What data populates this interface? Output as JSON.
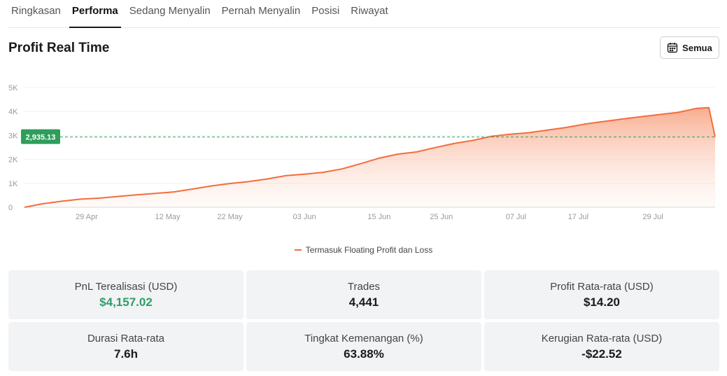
{
  "tabs": [
    {
      "label": "Ringkasan",
      "active": false
    },
    {
      "label": "Performa",
      "active": true
    },
    {
      "label": "Sedang Menyalin",
      "active": false
    },
    {
      "label": "Pernah Menyalin",
      "active": false
    },
    {
      "label": "Posisi",
      "active": false
    },
    {
      "label": "Riwayat",
      "active": false
    }
  ],
  "page_title": "Profit Real Time",
  "filter_button": {
    "label": "Semua",
    "icon": "calendar-icon"
  },
  "colors": {
    "line": "#f26d3d",
    "area_top": "#f9a98a",
    "marker": "#2e9e5b",
    "positive": "#2e9e6a"
  },
  "chart_data": {
    "type": "area",
    "title": "",
    "xlabel": "",
    "ylabel": "",
    "ylim": [
      0,
      5000
    ],
    "y_ticks": [
      0,
      1000,
      2000,
      3000,
      4000,
      5000
    ],
    "y_tick_labels": [
      "0",
      "1K",
      "2K",
      "3K",
      "4K",
      "5K"
    ],
    "x_range": [
      "2024-04-19",
      "2024-08-08"
    ],
    "x_ticks": [
      "2024-04-29",
      "2024-05-12",
      "2024-05-22",
      "2024-06-03",
      "2024-06-15",
      "2024-06-25",
      "2024-07-07",
      "2024-07-17",
      "2024-07-29"
    ],
    "x_tick_labels": [
      "29 Apr",
      "12 May",
      "22 May",
      "03 Jun",
      "15 Jun",
      "25 Jun",
      "07 Jul",
      "17 Jul",
      "29 Jul"
    ],
    "grid": true,
    "legend": "bottom-center",
    "current_marker": {
      "value": 2935.13,
      "label": "2,935.13"
    },
    "series": [
      {
        "name": "Termasuk Floating Profit dan Loss",
        "points": [
          [
            "2024-04-19",
            0
          ],
          [
            "2024-04-22",
            150
          ],
          [
            "2024-04-25",
            250
          ],
          [
            "2024-04-28",
            340
          ],
          [
            "2024-05-01",
            380
          ],
          [
            "2024-05-04",
            450
          ],
          [
            "2024-05-07",
            520
          ],
          [
            "2024-05-10",
            580
          ],
          [
            "2024-05-13",
            640
          ],
          [
            "2024-05-16",
            760
          ],
          [
            "2024-05-19",
            890
          ],
          [
            "2024-05-22",
            990
          ],
          [
            "2024-05-25",
            1070
          ],
          [
            "2024-05-28",
            1180
          ],
          [
            "2024-05-31",
            1320
          ],
          [
            "2024-06-03",
            1380
          ],
          [
            "2024-06-06",
            1460
          ],
          [
            "2024-06-09",
            1600
          ],
          [
            "2024-06-12",
            1820
          ],
          [
            "2024-06-15",
            2050
          ],
          [
            "2024-06-18",
            2220
          ],
          [
            "2024-06-21",
            2310
          ],
          [
            "2024-06-24",
            2490
          ],
          [
            "2024-06-27",
            2660
          ],
          [
            "2024-06-30",
            2790
          ],
          [
            "2024-07-03",
            2960
          ],
          [
            "2024-07-06",
            3050
          ],
          [
            "2024-07-09",
            3110
          ],
          [
            "2024-07-12",
            3220
          ],
          [
            "2024-07-15",
            3330
          ],
          [
            "2024-07-18",
            3470
          ],
          [
            "2024-07-21",
            3580
          ],
          [
            "2024-07-24",
            3680
          ],
          [
            "2024-07-27",
            3780
          ],
          [
            "2024-07-30",
            3870
          ],
          [
            "2024-08-02",
            3960
          ],
          [
            "2024-08-05",
            4130
          ],
          [
            "2024-08-07",
            4157
          ],
          [
            "2024-08-08",
            2935.13
          ]
        ]
      }
    ]
  },
  "stats": [
    {
      "label": "PnL Terealisasi (USD)",
      "value": "$4,157.02",
      "positive": true
    },
    {
      "label": "Trades",
      "value": "4,441",
      "positive": false
    },
    {
      "label": "Profit Rata-rata (USD)",
      "value": "$14.20",
      "positive": false
    },
    {
      "label": "Durasi Rata-rata",
      "value": "7.6h",
      "positive": false
    },
    {
      "label": "Tingkat Kemenangan (%)",
      "value": "63.88%",
      "positive": false
    },
    {
      "label": "Kerugian Rata-rata (USD)",
      "value": "-$22.52",
      "positive": false
    }
  ]
}
